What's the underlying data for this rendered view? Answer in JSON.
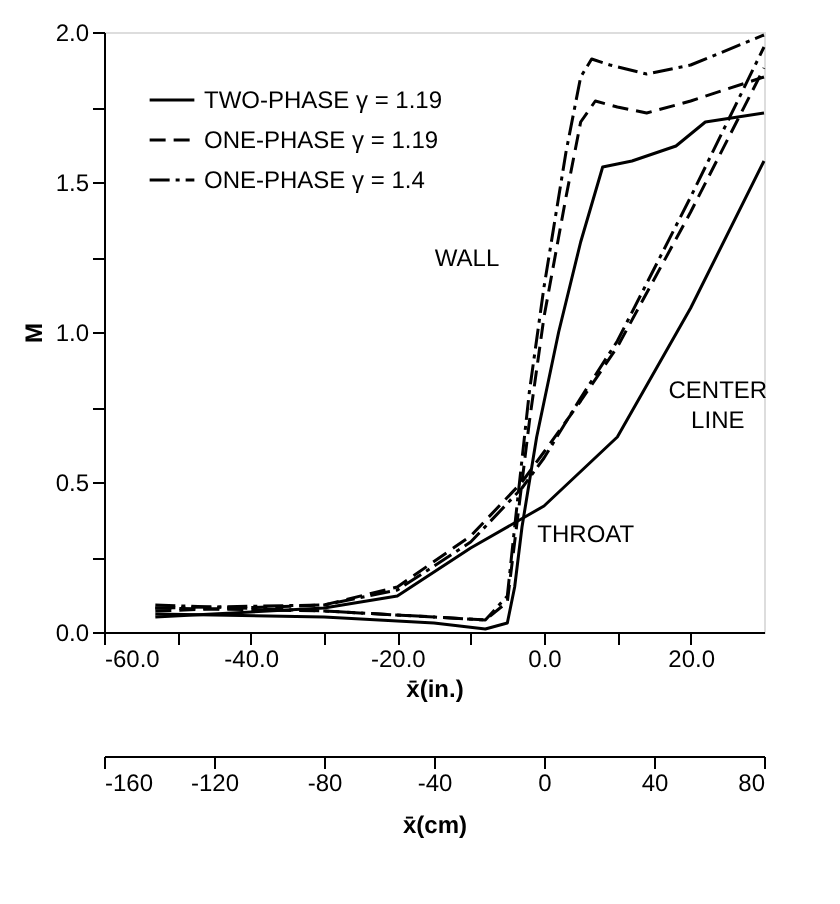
{
  "chart_data": {
    "type": "line",
    "xlabel": "x̄(in.)",
    "ylabel": "M",
    "x2label": "x̄(cm)",
    "xlim": [
      -60,
      30
    ],
    "ylim": [
      0,
      2.0
    ],
    "xticks": [
      {
        "value": -60,
        "label": "-60.0"
      },
      {
        "value": -50,
        "label": null
      },
      {
        "value": -40,
        "label": "-40.0"
      },
      {
        "value": -30,
        "label": null
      },
      {
        "value": -20,
        "label": "-20.0"
      },
      {
        "value": -10,
        "label": null
      },
      {
        "value": 0,
        "label": "0.0"
      },
      {
        "value": 10,
        "label": null
      },
      {
        "value": 20,
        "label": "20.0"
      }
    ],
    "yticks": [
      {
        "value": 0,
        "label": "0.0"
      },
      {
        "value": 0.25,
        "label": null
      },
      {
        "value": 0.5,
        "label": "0.5"
      },
      {
        "value": 0.75,
        "label": null
      },
      {
        "value": 1.0,
        "label": "1.0"
      },
      {
        "value": 1.25,
        "label": null
      },
      {
        "value": 1.5,
        "label": "1.5"
      },
      {
        "value": 1.75,
        "label": null
      },
      {
        "value": 2.0,
        "label": "2.0"
      }
    ],
    "x2lim": [
      -160,
      80
    ],
    "x2ticks": [
      -160,
      -120,
      -80,
      -40,
      0,
      40,
      80
    ],
    "legend": "top left",
    "grid": false,
    "marker": "none",
    "series": [
      {
        "name": "TWO-PHASE γ = 1.19",
        "color": "#000000",
        "line_style": "solid",
        "x": [
          -53,
          -30,
          -15,
          -8,
          -5,
          -4,
          -3,
          -1,
          2,
          5,
          8,
          12,
          18,
          22,
          30
        ],
        "values": [
          0.06,
          0.05,
          0.03,
          0.01,
          0.03,
          0.15,
          0.35,
          0.65,
          1.0,
          1.3,
          1.55,
          1.57,
          1.62,
          1.7,
          1.73
        ]
      },
      {
        "name": "ONE-PHASE γ = 1.19",
        "color": "#000000",
        "line_style": "dashed",
        "x": [
          -53,
          -30,
          -15,
          -8,
          -5,
          -4,
          -2,
          0,
          3,
          5,
          7,
          10,
          14,
          20,
          30
        ],
        "values": [
          0.08,
          0.07,
          0.05,
          0.04,
          0.1,
          0.3,
          0.7,
          1.05,
          1.45,
          1.7,
          1.77,
          1.75,
          1.73,
          1.77,
          1.85
        ]
      },
      {
        "name": "ONE-PHASE γ = 1.4",
        "color": "#000000",
        "line_style": "dashdot",
        "x": [
          -53,
          -30,
          -15,
          -8,
          -5,
          -4,
          -2,
          0,
          3,
          5,
          6.5,
          9,
          14,
          20,
          30
        ],
        "values": [
          0.09,
          0.07,
          0.05,
          0.04,
          0.12,
          0.35,
          0.8,
          1.15,
          1.6,
          1.85,
          1.91,
          1.89,
          1.86,
          1.89,
          1.99
        ]
      },
      {
        "color": "#000000",
        "line_style": "solid",
        "x": [
          -53,
          -30,
          -20,
          -10,
          0,
          10,
          20,
          30
        ],
        "values": [
          0.05,
          0.08,
          0.12,
          0.28,
          0.42,
          0.65,
          1.08,
          1.57
        ]
      },
      {
        "color": "#000000",
        "line_style": "dashed",
        "x": [
          -53,
          -30,
          -20,
          -10,
          -3,
          0,
          5,
          10,
          20,
          30
        ],
        "values": [
          0.07,
          0.09,
          0.15,
          0.32,
          0.5,
          0.6,
          0.77,
          0.95,
          1.4,
          1.88
        ]
      },
      {
        "color": "#000000",
        "line_style": "dashdot",
        "x": [
          -53,
          -30,
          -20,
          -10,
          -3,
          0,
          5,
          10,
          20,
          30
        ],
        "values": [
          0.08,
          0.09,
          0.14,
          0.3,
          0.48,
          0.58,
          0.78,
          0.97,
          1.45,
          1.95
        ]
      }
    ],
    "annotations": [
      "WALL",
      "CENTER LINE",
      "THROAT"
    ]
  }
}
